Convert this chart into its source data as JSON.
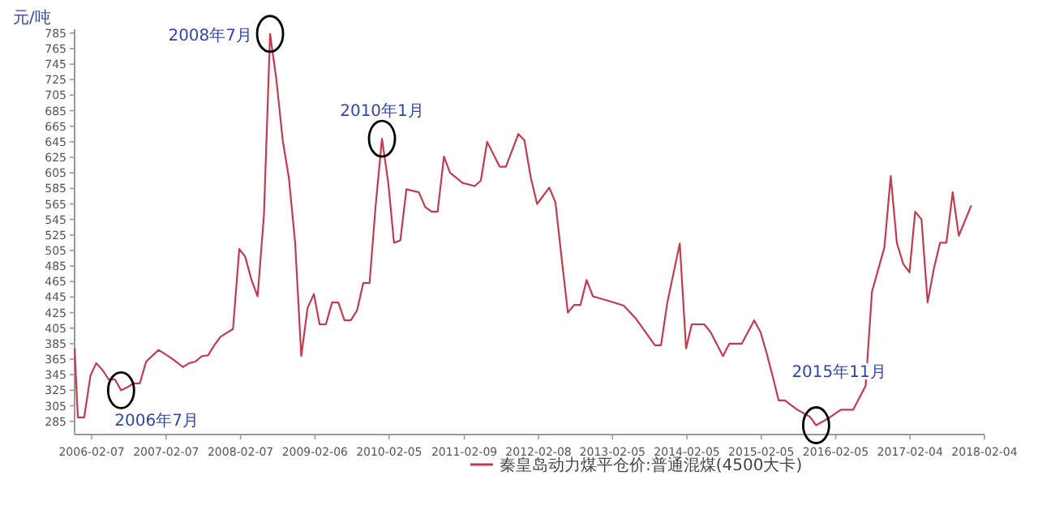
{
  "chart_data": {
    "type": "line",
    "ylabel": "元/吨",
    "x": [
      "2005-11-15",
      "2005-12",
      "2006-01",
      "2006-02",
      "2006-03",
      "2006-04",
      "2006-05",
      "2006-06",
      "2006-07",
      "2006-08",
      "2006-09",
      "2006-10",
      "2006-11",
      "2007-01",
      "2007-03",
      "2007-05",
      "2007-06",
      "2007-07",
      "2007-08",
      "2007-09",
      "2007-10",
      "2007-11",
      "2008-01",
      "2008-02",
      "2008-03",
      "2008-04",
      "2008-05",
      "2008-06",
      "2008-07",
      "2008-08",
      "2008-09",
      "2008-10",
      "2008-11",
      "2008-12",
      "2009-01",
      "2009-02",
      "2009-03",
      "2009-04",
      "2009-05",
      "2009-06",
      "2009-07",
      "2009-08",
      "2009-09",
      "2009-10",
      "2009-11",
      "2009-12",
      "2010-01",
      "2010-02",
      "2010-03",
      "2010-04",
      "2010-05",
      "2010-07",
      "2010-08",
      "2010-09",
      "2010-10",
      "2010-11",
      "2010-12",
      "2011-02",
      "2011-04",
      "2011-05",
      "2011-06",
      "2011-08",
      "2011-09",
      "2011-11",
      "2011-12",
      "2012-01",
      "2012-02",
      "2012-04",
      "2012-05",
      "2012-06",
      "2012-07",
      "2012-08",
      "2012-09",
      "2012-10",
      "2012-11",
      "2013-02",
      "2013-04",
      "2013-06",
      "2013-09",
      "2013-10",
      "2013-11",
      "2014-01",
      "2014-02",
      "2014-03",
      "2014-04",
      "2014-05",
      "2014-06",
      "2014-08",
      "2014-09",
      "2014-11",
      "2015-01",
      "2015-02",
      "2015-03",
      "2015-04",
      "2015-05",
      "2015-06",
      "2015-07",
      "2015-08",
      "2015-10",
      "2015-11",
      "2016-01",
      "2016-03",
      "2016-05",
      "2016-07",
      "2016-08",
      "2016-10",
      "2016-11",
      "2016-12",
      "2017-01",
      "2017-02",
      "2017-03",
      "2017-04",
      "2017-05",
      "2017-06",
      "2017-07",
      "2017-08",
      "2017-09",
      "2017-10",
      "2017-12"
    ],
    "series": [
      {
        "name": "秦皇岛动力煤平仓价:普通混煤(4500大卡)",
        "color": "#c23b4e",
        "values": [
          379,
          290,
          290,
          344,
          360,
          351,
          339,
          339,
          325,
          329,
          334,
          334,
          362,
          377,
          367,
          355,
          360,
          362,
          369,
          370,
          383,
          394,
          404,
          507,
          497,
          467,
          446,
          551,
          784,
          725,
          647,
          599,
          515,
          369,
          431,
          449,
          410,
          410,
          438,
          438,
          415,
          415,
          428,
          463,
          463,
          563,
          649,
          592,
          515,
          518,
          584,
          580,
          561,
          555,
          555,
          626,
          605,
          592,
          588,
          595,
          645,
          613,
          613,
          655,
          647,
          599,
          565,
          586,
          567,
          494,
          425,
          435,
          435,
          467,
          446,
          439,
          434,
          417,
          383,
          383,
          438,
          514,
          379,
          410,
          410,
          410,
          400,
          369,
          385,
          385,
          415,
          400,
          375,
          344,
          312,
          312,
          306,
          300,
          291,
          280,
          289,
          300,
          300,
          331,
          452,
          509,
          601,
          515,
          488,
          477,
          555,
          545,
          438,
          482,
          515,
          515,
          580,
          524,
          563
        ]
      }
    ],
    "xlim": [
      "2005-11-15",
      "2018-02-04"
    ],
    "xticks": [
      "2006-02-07",
      "2007-02-07",
      "2008-02-07",
      "2009-02-06",
      "2010-02-05",
      "2011-02-09",
      "2012-02-08",
      "2013-02-05",
      "2014-02-05",
      "2015-02-05",
      "2016-02-05",
      "2017-02-04",
      "2018-02-04"
    ],
    "ylim": [
      268,
      790
    ],
    "yticks": [
      285,
      305,
      325,
      345,
      365,
      385,
      405,
      425,
      445,
      465,
      485,
      505,
      525,
      545,
      565,
      585,
      605,
      625,
      645,
      665,
      685,
      705,
      725,
      745,
      765,
      785
    ],
    "annotations": [
      {
        "text": "2006年7月",
        "x": "2006-07",
        "y": 325
      },
      {
        "text": "2008年7月",
        "x": "2008-07",
        "y": 784
      },
      {
        "text": "2010年1月",
        "x": "2010-01",
        "y": 649
      },
      {
        "text": "2015年11月",
        "x": "2015-11",
        "y": 280
      }
    ],
    "grid": false,
    "legend": "bottom",
    "marker": "none",
    "line_style": "solid"
  }
}
